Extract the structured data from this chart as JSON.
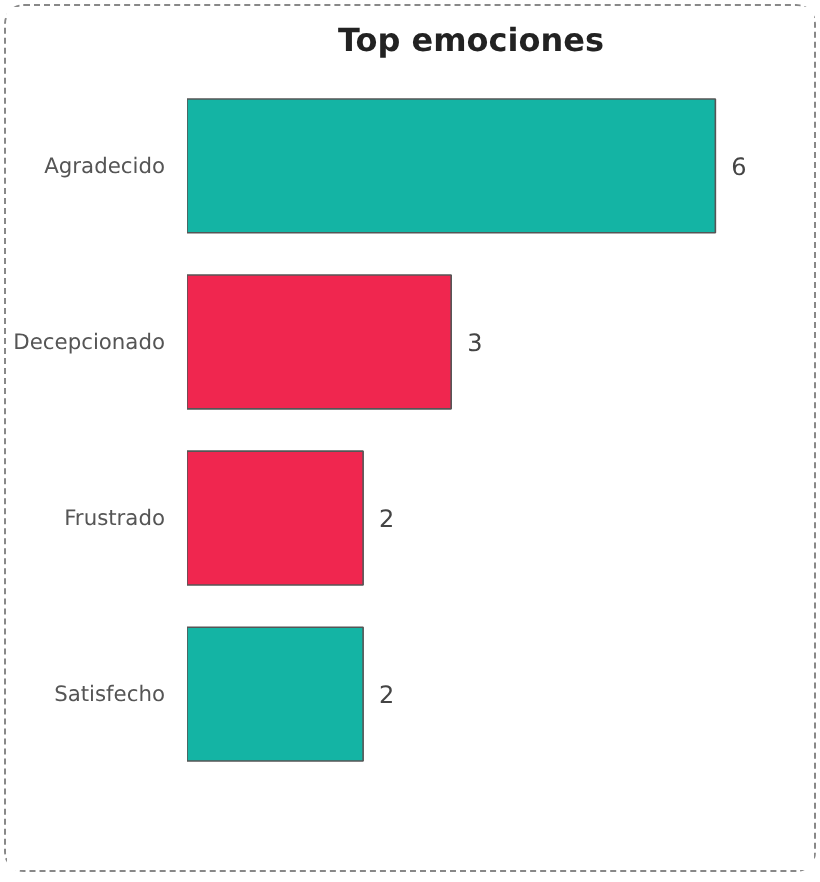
{
  "chart_data": {
    "type": "bar",
    "orientation": "horizontal",
    "title": "Top emociones",
    "categories": [
      "Agradecido",
      "Decepcionado",
      "Frustrado",
      "Satisfecho"
    ],
    "values": [
      6,
      3,
      2,
      2
    ],
    "colors": [
      "#14b4a4",
      "#f0264f",
      "#f0264f",
      "#14b4a4"
    ],
    "tick_labels": "y",
    "data_labels": true
  }
}
